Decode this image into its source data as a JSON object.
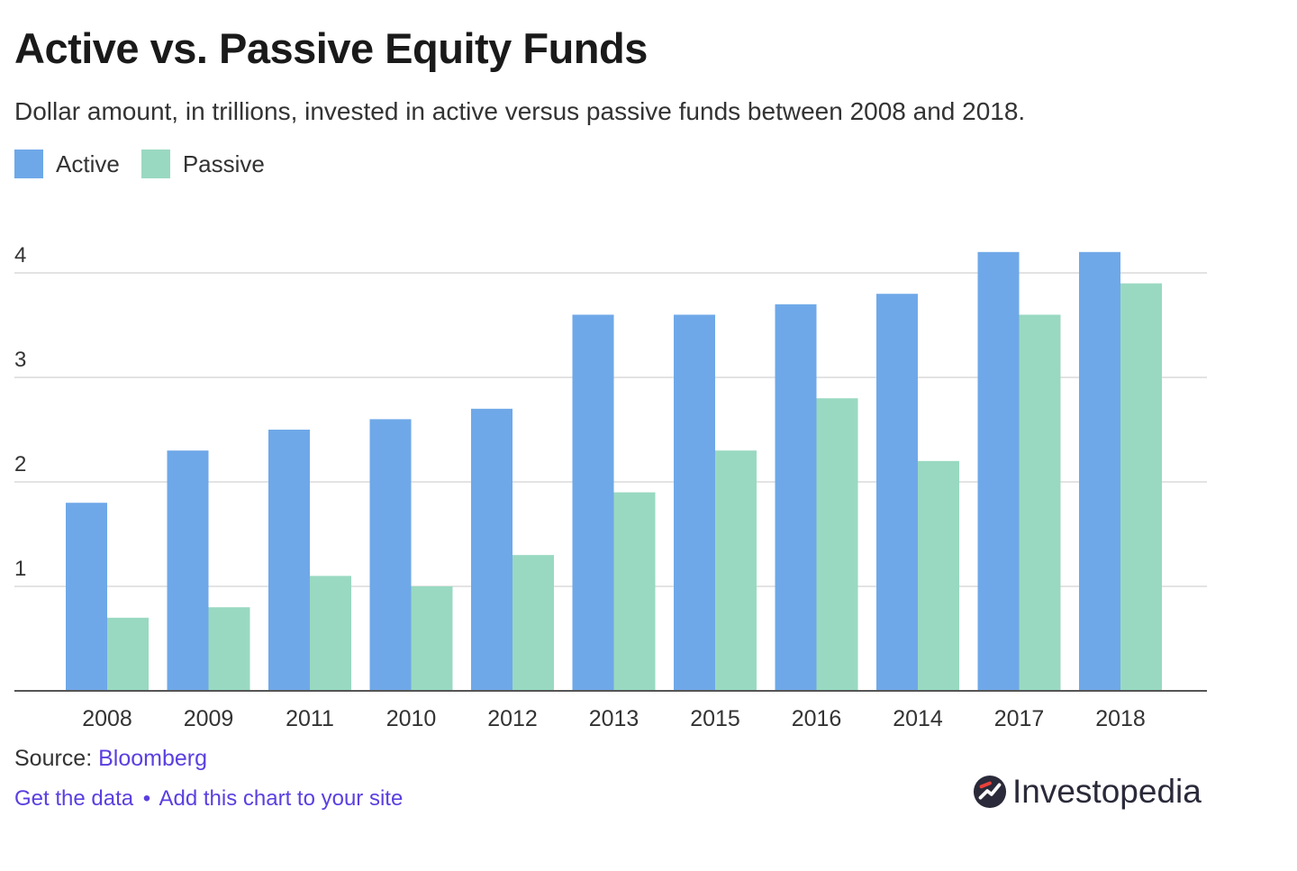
{
  "title": "Active vs. Passive Equity Funds",
  "subtitle": "Dollar amount, in trillions, invested in active versus passive funds between 2008 and 2018.",
  "legend": {
    "active_label": "Active",
    "passive_label": "Passive"
  },
  "colors": {
    "active": "#6fa8e8",
    "passive": "#99d9c1",
    "gridline": "#e3e3e3",
    "axis": "#555555",
    "link": "#5b3fe0"
  },
  "source": {
    "prefix": "Source: ",
    "name": "Bloomberg"
  },
  "links": {
    "get_data": "Get the data",
    "separator": "•",
    "add_chart": "Add this chart to your site"
  },
  "brand": {
    "name": "Investopedia",
    "icon": "investopedia-logo-icon"
  },
  "chart_data": {
    "type": "bar",
    "title": "Active vs. Passive Equity Funds",
    "subtitle": "Dollar amount, in trillions, invested in active versus passive funds between 2008 and 2018.",
    "categories": [
      "2008",
      "2009",
      "2011",
      "2010",
      "2012",
      "2013",
      "2015",
      "2016",
      "2014",
      "2017",
      "2018"
    ],
    "series": [
      {
        "name": "Active",
        "values": [
          1.8,
          2.3,
          2.5,
          2.6,
          2.7,
          3.6,
          3.6,
          3.7,
          3.8,
          4.2,
          4.2
        ]
      },
      {
        "name": "Passive",
        "values": [
          0.7,
          0.8,
          1.1,
          1.0,
          1.3,
          1.9,
          2.3,
          2.8,
          2.2,
          3.6,
          3.9
        ]
      }
    ],
    "yticks": [
      1,
      2,
      3,
      4
    ],
    "ylim": [
      0,
      4.2
    ],
    "xlabel": "",
    "ylabel": "",
    "grid": true,
    "legend_position": "top-left"
  }
}
